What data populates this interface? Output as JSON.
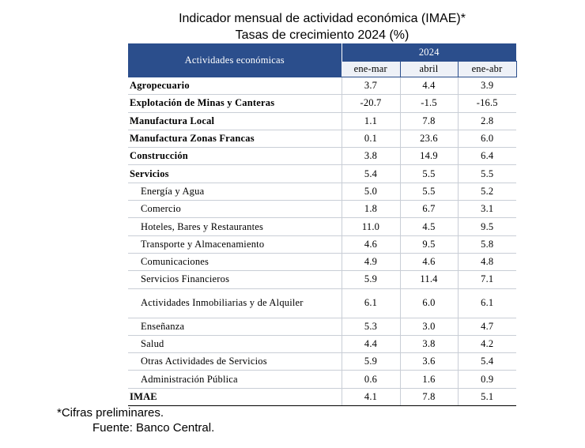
{
  "title_line1": "Indicador mensual de actividad económica (IMAE)*",
  "title_line2": "Tasas de crecimiento 2024 (%)",
  "table": {
    "header_activity": "Actividades económicas",
    "header_year": "2024",
    "columns": [
      "ene-mar",
      "abril",
      "ene-abr"
    ],
    "rows": [
      {
        "label": "Agropecuario",
        "values": [
          "3.7",
          "4.4",
          "3.9"
        ]
      },
      {
        "label": "Explotación de Minas y Canteras",
        "values": [
          "-20.7",
          "-1.5",
          "-16.5"
        ]
      },
      {
        "label": "Manufactura Local",
        "values": [
          "1.1",
          "7.8",
          "2.8"
        ]
      },
      {
        "label": "Manufactura Zonas Francas",
        "values": [
          "0.1",
          "23.6",
          "6.0"
        ]
      },
      {
        "label": "Construcción",
        "values": [
          "3.8",
          "14.9",
          "6.4"
        ]
      },
      {
        "label": "Servicios",
        "values": [
          "5.4",
          "5.5",
          "5.5"
        ]
      },
      {
        "label": "Energía y Agua",
        "values": [
          "5.0",
          "5.5",
          "5.2"
        ]
      },
      {
        "label": "Comercio",
        "values": [
          "1.8",
          "6.7",
          "3.1"
        ]
      },
      {
        "label": "Hoteles, Bares y Restaurantes",
        "values": [
          "11.0",
          "4.5",
          "9.5"
        ]
      },
      {
        "label": "Transporte y Almacenamiento",
        "values": [
          "4.6",
          "9.5",
          "5.8"
        ]
      },
      {
        "label": "Comunicaciones",
        "values": [
          "4.9",
          "4.6",
          "4.8"
        ]
      },
      {
        "label": "Servicios Financieros",
        "values": [
          "5.9",
          "11.4",
          "7.1"
        ]
      },
      {
        "label": "Actividades Inmobiliarias y de Alquiler",
        "values": [
          "6.1",
          "6.0",
          "6.1"
        ]
      },
      {
        "label": "Enseñanza",
        "values": [
          "5.3",
          "3.0",
          "4.7"
        ]
      },
      {
        "label": "Salud",
        "values": [
          "4.4",
          "3.8",
          "4.2"
        ]
      },
      {
        "label": "Otras Actividades de Servicios",
        "values": [
          "5.9",
          "3.6",
          "5.4"
        ]
      },
      {
        "label": "Administración Pública",
        "values": [
          "0.6",
          "1.6",
          "0.9"
        ]
      },
      {
        "label": "IMAE",
        "values": [
          "4.1",
          "7.8",
          "5.1"
        ]
      }
    ]
  },
  "footnote": "*Cifras preliminares.",
  "source": "Fuente: Banco Central.",
  "colors": {
    "header_bg": "#2b4e8c",
    "header_text": "#ffffff"
  }
}
